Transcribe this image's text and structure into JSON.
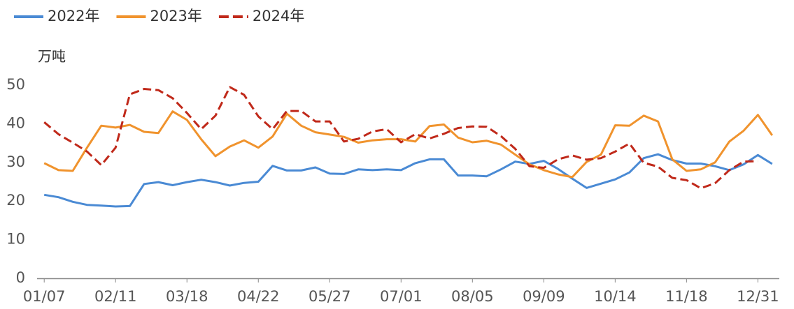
{
  "chart_data": {
    "type": "line",
    "y_label": "万吨",
    "categories": [
      "01/07",
      null,
      null,
      null,
      null,
      "02/11",
      null,
      null,
      null,
      null,
      "03/18",
      null,
      null,
      null,
      null,
      "04/22",
      null,
      null,
      null,
      null,
      "05/27",
      null,
      null,
      null,
      null,
      "07/01",
      null,
      null,
      null,
      null,
      "08/05",
      null,
      null,
      null,
      null,
      "09/09",
      null,
      null,
      null,
      null,
      "10/14",
      null,
      null,
      null,
      null,
      "11/18",
      null,
      null,
      null,
      null,
      "12/31",
      null
    ],
    "series": [
      {
        "name": "2022年",
        "color": "#4a8ad4",
        "dash": false,
        "values": [
          21.6,
          21.0,
          19.8,
          19.0,
          18.8,
          18.6,
          18.7,
          24.4,
          24.9,
          24.1,
          24.9,
          25.5,
          24.9,
          24.0,
          24.7,
          25.0,
          29.1,
          27.9,
          27.9,
          28.7,
          27.1,
          27.0,
          28.2,
          28.0,
          28.2,
          28.0,
          29.8,
          30.8,
          30.8,
          26.6,
          26.6,
          26.4,
          28.2,
          30.2,
          29.6,
          30.4,
          28.3,
          25.8,
          23.4,
          24.5,
          25.6,
          27.4,
          31.1,
          32.1,
          30.6,
          29.7,
          29.7,
          29.0,
          28.0,
          29.5,
          31.9,
          29.6
        ]
      },
      {
        "name": "2023年",
        "color": "#f0932d",
        "dash": false,
        "values": [
          29.8,
          28.0,
          27.8,
          33.8,
          39.5,
          39.0,
          39.7,
          37.9,
          37.6,
          43.2,
          41.0,
          36.0,
          31.6,
          34.1,
          35.7,
          33.8,
          36.7,
          42.6,
          39.5,
          37.8,
          37.2,
          36.6,
          35.1,
          35.7,
          36.0,
          36.0,
          35.4,
          39.4,
          39.8,
          36.4,
          35.2,
          35.6,
          34.6,
          32.0,
          29.5,
          28.0,
          26.9,
          26.2,
          30.1,
          32.0,
          39.6,
          39.5,
          42.1,
          40.6,
          30.8,
          27.8,
          28.2,
          30.0,
          35.4,
          38.2,
          42.3,
          37.0
        ]
      },
      {
        "name": "2024年",
        "color": "#c0291a",
        "dash": true,
        "values": [
          40.4,
          37.3,
          35.1,
          32.8,
          29.3,
          33.8,
          47.6,
          49.0,
          48.7,
          46.6,
          42.8,
          38.6,
          42.1,
          49.5,
          47.5,
          41.9,
          38.6,
          43.3,
          43.3,
          40.6,
          40.6,
          35.4,
          36.1,
          38.0,
          38.6,
          35.2,
          37.3,
          36.2,
          37.4,
          38.9,
          39.3,
          39.2,
          36.8,
          33.5,
          29.0,
          28.6,
          30.8,
          31.8,
          30.7,
          31.1,
          32.8,
          34.9,
          29.9,
          28.9,
          26.0,
          25.4,
          23.3,
          24.6,
          28.0,
          30.2,
          30.3,
          null
        ]
      }
    ],
    "ylim": [
      0,
      50
    ],
    "yticks": [
      0,
      10,
      20,
      30,
      40,
      50
    ],
    "grid": false,
    "legend": "top-left"
  }
}
